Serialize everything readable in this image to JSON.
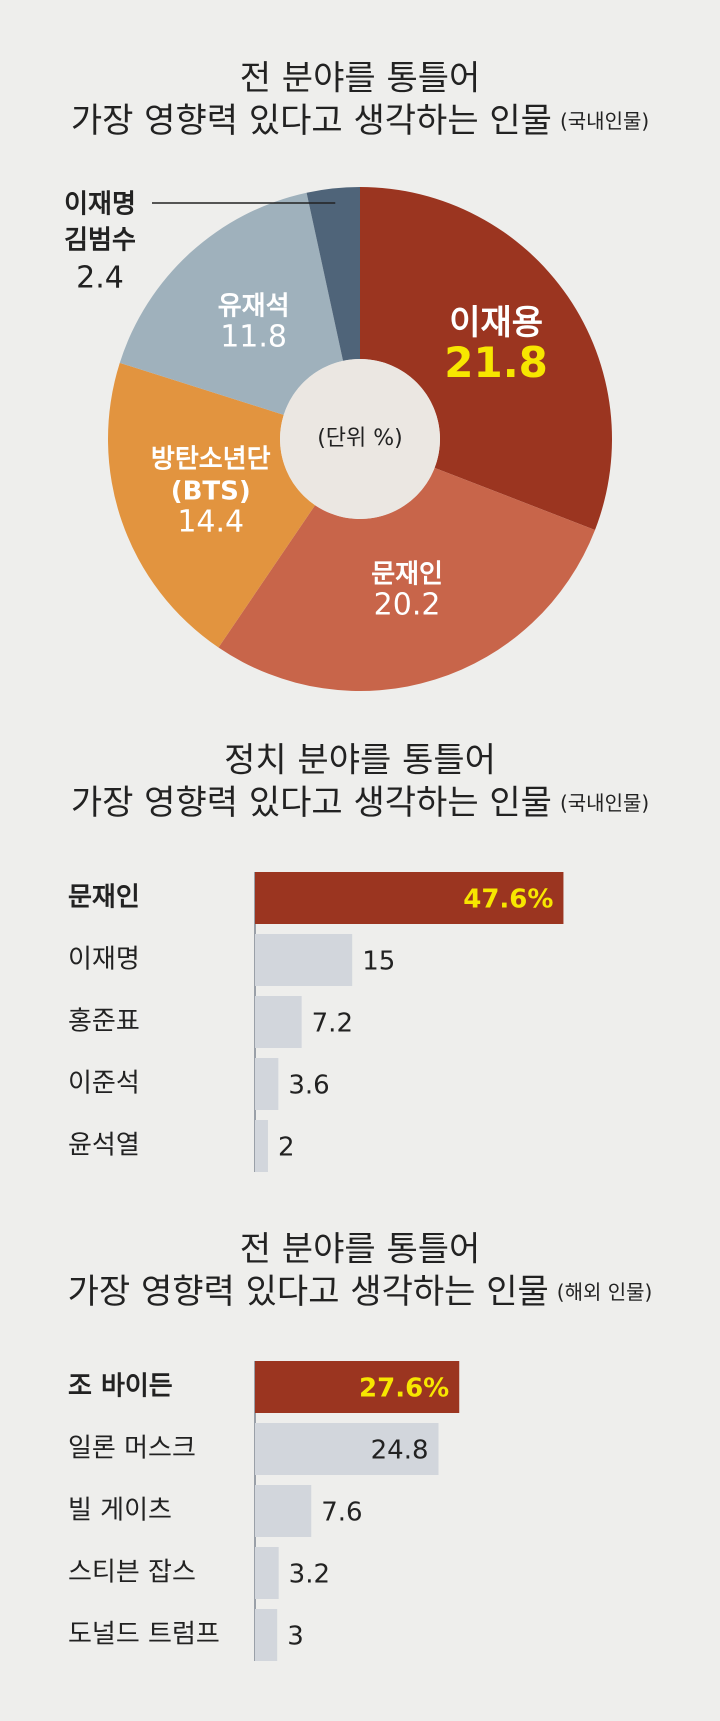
{
  "chart_data": [
    {
      "type": "pie",
      "title": [
        "전 분야를 통틀어",
        "가장 영향력 있다고 생각하는 인물"
      ],
      "note": "(국내인물)",
      "center_label": "(단위 %)",
      "categories": [
        [
          "이재용"
        ],
        [
          "문재인"
        ],
        [
          "방탄소년단",
          "(BTS)"
        ],
        [
          "유재석"
        ],
        [
          "이재명",
          "김범수"
        ]
      ],
      "values": [
        21.8,
        20.2,
        14.4,
        11.8,
        2.4
      ],
      "colors": [
        "#9b3520",
        "#c8654a",
        "#e2943f",
        "#9fb1bc",
        "#4f6479"
      ],
      "highlight_label_color": "#f7e600"
    },
    {
      "type": "hbar",
      "title": [
        "정치 분야를 통틀어",
        "가장 영향력 있다고 생각하는 인물"
      ],
      "note": "(국내인물)",
      "categories": [
        "문재인",
        "이재명",
        "홍준표",
        "이준석",
        "윤석열"
      ],
      "values": [
        47.6,
        15,
        7.2,
        3.6,
        2
      ],
      "value_labels": [
        "47.6%",
        "15",
        "7.2",
        "3.6",
        "2"
      ],
      "colors": [
        "#9b3520",
        "#d2d6dc",
        "#d2d6dc",
        "#d2d6dc",
        "#d2d6dc"
      ],
      "highlight_label_color": "#f7e600",
      "xlim": [
        0,
        50
      ]
    },
    {
      "type": "hbar",
      "title": [
        "전 분야를 통틀어",
        "가장 영향력 있다고 생각하는 인물"
      ],
      "note": "(해외 인물)",
      "categories": [
        "조 바이든",
        "일론 머스크",
        "빌 게이츠",
        "스티븐 잡스",
        "도널드 트럼프"
      ],
      "values": [
        27.6,
        24.8,
        7.6,
        3.2,
        3
      ],
      "value_labels": [
        "27.6%",
        "24.8",
        "7.6",
        "3.2",
        "3"
      ],
      "colors": [
        "#9b3520",
        "#d2d6dc",
        "#d2d6dc",
        "#d2d6dc",
        "#d2d6dc"
      ],
      "highlight_label_color": "#f7e600",
      "xlim": [
        0,
        30
      ]
    }
  ]
}
